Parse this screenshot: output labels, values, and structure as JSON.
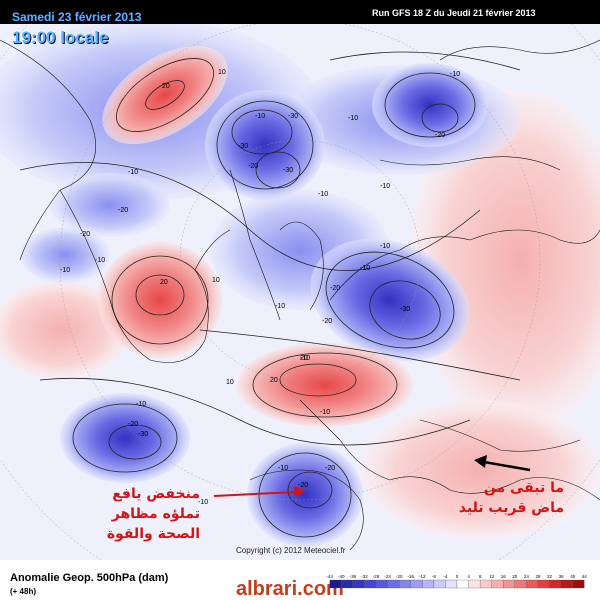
{
  "header": {
    "date": "Samedi 23 février 2013",
    "time": "19:00 locale",
    "run": "Run GFS 18 Z du Jeudi 21 février 2013"
  },
  "footer": {
    "title": "Anomalie Geop. 500hPa (dam)",
    "step": "(+ 48h)",
    "copyright": "Copyright (c) 2012 Meteociel.fr",
    "watermark": "albrari.com"
  },
  "colorbar": {
    "ticks": [
      "-44",
      "-40",
      "-36",
      "-32",
      "-28",
      "-24",
      "-20",
      "-16",
      "-12",
      "-8",
      "-4",
      "0",
      "4",
      "8",
      "12",
      "16",
      "20",
      "24",
      "28",
      "32",
      "36",
      "40",
      "44"
    ],
    "colors": [
      "#1b1b8f",
      "#2a2aa8",
      "#3535c0",
      "#4646d4",
      "#5858de",
      "#6c6ce6",
      "#8484ee",
      "#9c9cf2",
      "#b4b4f6",
      "#cbcbfa",
      "#e2e2fc",
      "#ffffff",
      "#fce4e4",
      "#f9caca",
      "#f6afaf",
      "#f39494",
      "#ef7878",
      "#ea5c5c",
      "#e04040",
      "#d02828",
      "#ba1818",
      "#a00c0c"
    ]
  },
  "annotations": {
    "left": "منخفض يافع تملؤه مظاهر الصحة والقوة",
    "right": "ما تبقى من ماض قريب تليد"
  },
  "map_labels": [
    "20",
    "10",
    "-10",
    "-10",
    "-30",
    "-30",
    "-20",
    "-30",
    "-10",
    "-20",
    "-10",
    "-10",
    "-10",
    "-10",
    "-20",
    "-20",
    "20",
    "10",
    "-10",
    "-10",
    "-10",
    "-30",
    "-20",
    "-20",
    "-10",
    "20",
    "20",
    "10",
    "-10",
    "-10",
    "-20",
    "-30",
    "-20",
    "-10",
    "-10",
    "-20",
    "-10"
  ],
  "colors": {
    "negative_strong": "#3f3fd0",
    "negative_light": "#c8ccf4",
    "positive_strong": "#ec5a5a",
    "positive_light": "#f7cdcd",
    "annotation_red": "#d21414",
    "header_blue": "#5ab4ff"
  }
}
